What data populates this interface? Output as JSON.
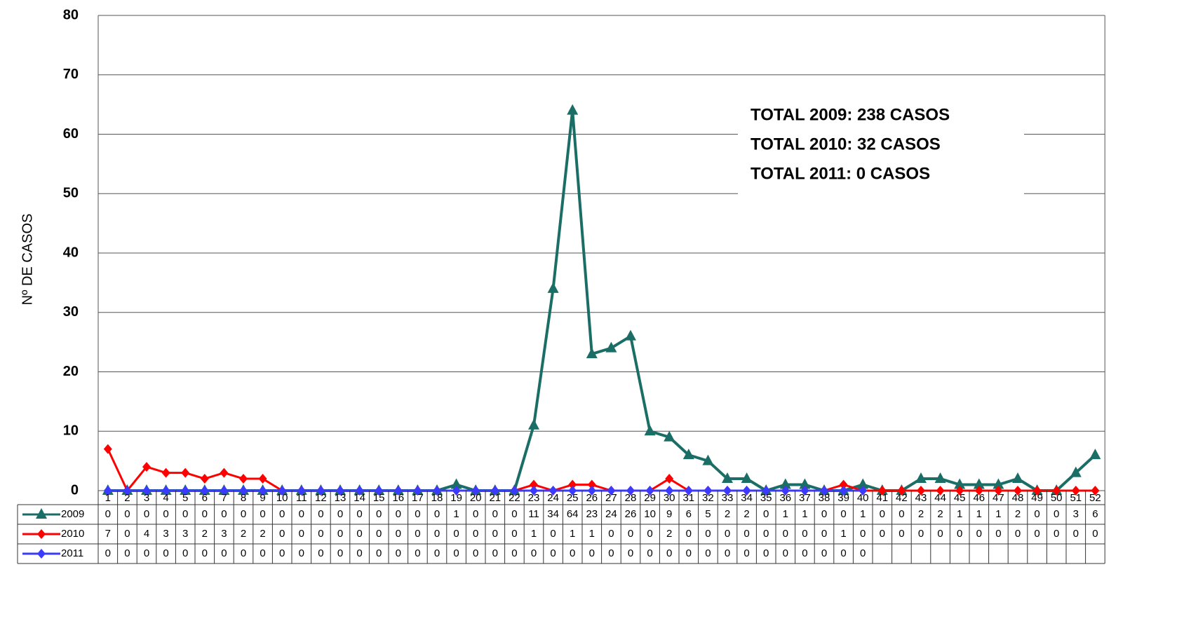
{
  "chart_data": {
    "type": "line",
    "y_label": "Nº DE CASOS",
    "annotations": [
      "TOTAL 2009: 238 CASOS",
      "TOTAL 2010: 32 CASOS",
      "TOTAL 2011: 0 CASOS"
    ],
    "categories": [
      "1",
      "2",
      "3",
      "4",
      "5",
      "6",
      "7",
      "8",
      "9",
      "10",
      "11",
      "12",
      "13",
      "14",
      "15",
      "16",
      "17",
      "18",
      "19",
      "20",
      "21",
      "22",
      "23",
      "24",
      "25",
      "26",
      "27",
      "28",
      "29",
      "30",
      "31",
      "32",
      "33",
      "34",
      "35",
      "36",
      "37",
      "38",
      "39",
      "40",
      "41",
      "42",
      "43",
      "44",
      "45",
      "46",
      "47",
      "48",
      "49",
      "50",
      "51",
      "52"
    ],
    "series": [
      {
        "name": "2009",
        "color": "#1b6e66",
        "marker": "triangle",
        "values": [
          0,
          0,
          0,
          0,
          0,
          0,
          0,
          0,
          0,
          0,
          0,
          0,
          0,
          0,
          0,
          0,
          0,
          0,
          1,
          0,
          0,
          0,
          11,
          34,
          64,
          23,
          24,
          26,
          10,
          9,
          6,
          5,
          2,
          2,
          0,
          1,
          1,
          0,
          0,
          1,
          0,
          0,
          2,
          2,
          1,
          1,
          1,
          2,
          0,
          0,
          3,
          6
        ]
      },
      {
        "name": "2010",
        "color": "#ff0000",
        "marker": "diamond",
        "values": [
          7,
          0,
          4,
          3,
          3,
          2,
          3,
          2,
          2,
          0,
          0,
          0,
          0,
          0,
          0,
          0,
          0,
          0,
          0,
          0,
          0,
          0,
          1,
          0,
          1,
          1,
          0,
          0,
          0,
          2,
          0,
          0,
          0,
          0,
          0,
          0,
          0,
          0,
          1,
          0,
          0,
          0,
          0,
          0,
          0,
          0,
          0,
          0,
          0,
          0,
          0,
          0
        ]
      },
      {
        "name": "2011",
        "color": "#3b3bff",
        "marker": "diamond",
        "values": [
          0,
          0,
          0,
          0,
          0,
          0,
          0,
          0,
          0,
          0,
          0,
          0,
          0,
          0,
          0,
          0,
          0,
          0,
          0,
          0,
          0,
          0,
          0,
          0,
          0,
          0,
          0,
          0,
          0,
          0,
          0,
          0,
          0,
          0,
          0,
          0,
          0,
          0,
          0,
          0,
          null,
          null,
          null,
          null,
          null,
          null,
          null,
          null,
          null,
          null,
          null,
          null
        ]
      }
    ],
    "ylim": [
      0,
      80
    ],
    "yticks": [
      0,
      10,
      20,
      30,
      40,
      50,
      60,
      70,
      80
    ],
    "grid": true
  }
}
